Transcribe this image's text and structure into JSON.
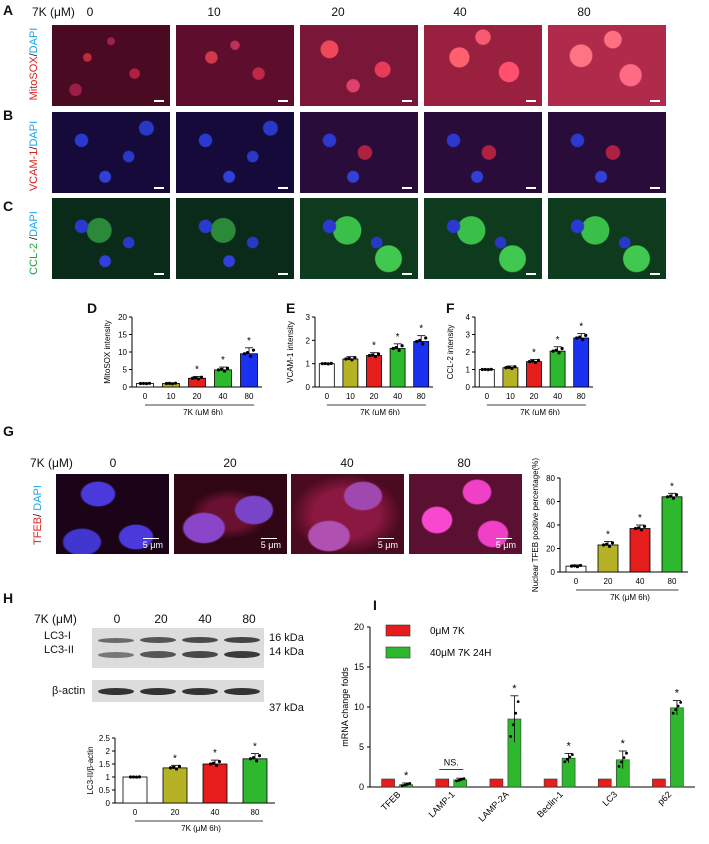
{
  "panels": {
    "A": "A",
    "B": "B",
    "C": "C",
    "D": "D",
    "E": "E",
    "F": "F",
    "G": "G",
    "H": "H",
    "I": "I"
  },
  "top": {
    "dose_header": "7K (μM)",
    "doses": [
      "0",
      "10",
      "20",
      "40",
      "80"
    ],
    "row_labels": [
      {
        "stain": "MitoSOX",
        "sep": "/",
        "dapi": "DAPI"
      },
      {
        "stain": "VCAM-1",
        "sep": "/",
        "dapi": "DAPI"
      },
      {
        "stain": "CCL-2",
        "sep": " /",
        "dapi": "DAPI"
      }
    ]
  },
  "tfeb": {
    "dose_header": "7K (μM)",
    "doses": [
      "0",
      "20",
      "40",
      "80"
    ],
    "row_label": {
      "stain": "TFEB",
      "sep": "/ ",
      "dapi": "DAPI"
    },
    "scalebar": "5 μm"
  },
  "blot": {
    "dose_header": "7K (μM)",
    "doses": [
      "0",
      "20",
      "40",
      "80"
    ],
    "bands": [
      "LC3-I",
      "LC3-II",
      "β-actin"
    ],
    "sizes": [
      "16 kDa",
      "14 kDa",
      "37 kDa"
    ]
  },
  "chart_data": [
    {
      "id": "D",
      "type": "bar",
      "categories": [
        "0",
        "10",
        "20",
        "40",
        "80"
      ],
      "values": [
        1.0,
        1.0,
        2.5,
        4.9,
        9.5
      ],
      "errors": [
        0.1,
        0.15,
        0.5,
        0.8,
        1.7
      ],
      "colors": [
        "#ffffff",
        "#b5b325",
        "#e51d1d",
        "#2eb82e",
        "#1b31f0"
      ],
      "stars": [
        false,
        false,
        true,
        true,
        true
      ],
      "ylabel": "MitoSOX intensity",
      "xlabel": "7K (μM 6h)",
      "ylim": [
        0,
        20
      ],
      "yticks": [
        0,
        5,
        10,
        15,
        20
      ]
    },
    {
      "id": "E",
      "type": "bar",
      "categories": [
        "0",
        "10",
        "20",
        "40",
        "80"
      ],
      "values": [
        1.0,
        1.2,
        1.35,
        1.65,
        1.95
      ],
      "errors": [
        0.02,
        0.1,
        0.12,
        0.2,
        0.25
      ],
      "colors": [
        "#ffffff",
        "#b5b325",
        "#e51d1d",
        "#2eb82e",
        "#1b31f0"
      ],
      "stars": [
        false,
        false,
        true,
        true,
        true
      ],
      "ylabel": "VCAM-1 intensity",
      "xlabel": "7K (μM 6h)",
      "ylim": [
        0,
        3
      ],
      "yticks": [
        0,
        1,
        2,
        3
      ]
    },
    {
      "id": "F",
      "type": "bar",
      "categories": [
        "0",
        "10",
        "20",
        "40",
        "80"
      ],
      "values": [
        1.0,
        1.1,
        1.45,
        2.05,
        2.8
      ],
      "errors": [
        0.02,
        0.1,
        0.12,
        0.25,
        0.25
      ],
      "colors": [
        "#ffffff",
        "#b5b325",
        "#e51d1d",
        "#2eb82e",
        "#1b31f0"
      ],
      "stars": [
        false,
        false,
        true,
        true,
        true
      ],
      "ylabel": "CCL-2 intensity",
      "xlabel": "7K (μM 6h)",
      "ylim": [
        0,
        4
      ],
      "yticks": [
        0,
        1,
        2,
        3,
        4
      ]
    },
    {
      "id": "G",
      "type": "bar",
      "categories": [
        "0",
        "20",
        "40",
        "80"
      ],
      "values": [
        5,
        23,
        37,
        64
      ],
      "errors": [
        1,
        3,
        3,
        3
      ],
      "colors": [
        "#ffffff",
        "#b5b325",
        "#e51d1d",
        "#2eb82e"
      ],
      "stars": [
        false,
        true,
        true,
        true
      ],
      "ylabel": "Nuclear TFEB positive percentage(%)",
      "xlabel": "7K (μM 6h)",
      "ylim": [
        0,
        80
      ],
      "yticks": [
        0,
        20,
        40,
        60,
        80
      ]
    },
    {
      "id": "H",
      "type": "bar",
      "categories": [
        "0",
        "20",
        "40",
        "80"
      ],
      "values": [
        1.0,
        1.35,
        1.5,
        1.7
      ],
      "errors": [
        0.01,
        0.1,
        0.15,
        0.2
      ],
      "colors": [
        "#ffffff",
        "#b5b325",
        "#e51d1d",
        "#2eb82e"
      ],
      "stars": [
        false,
        true,
        true,
        true
      ],
      "ylabel": "LC3-II/β-actin",
      "xlabel": "7K (μM 6h)",
      "ylim": [
        0,
        2.5
      ],
      "yticks": [
        0,
        0.5,
        1,
        1.5,
        2,
        2.5
      ]
    },
    {
      "id": "I",
      "type": "bar",
      "categories": [
        "TFEB",
        "LAMP-1",
        "LAMP-2A",
        "Beclin-1",
        "LC3",
        "p62"
      ],
      "series": [
        {
          "name": "0μM 7K",
          "values": [
            1,
            1,
            1,
            1,
            1,
            1
          ],
          "errors": [
            0,
            0,
            0,
            0,
            0,
            0
          ],
          "color": "#e51d1d"
        },
        {
          "name": "40μM 7K 24H",
          "values": [
            0.3,
            0.9,
            8.5,
            3.6,
            3.4,
            9.9
          ],
          "errors": [
            0.2,
            0.2,
            2.9,
            0.6,
            1.1,
            0.9
          ],
          "color": "#2eb82e"
        }
      ],
      "stars": [
        true,
        false,
        true,
        true,
        true,
        true
      ],
      "ns_label": "NS.",
      "ylabel": "mRNA change folds",
      "ylim": [
        0,
        20
      ],
      "yticks": [
        0,
        5,
        10,
        15,
        20
      ],
      "legend": "top-left"
    }
  ]
}
